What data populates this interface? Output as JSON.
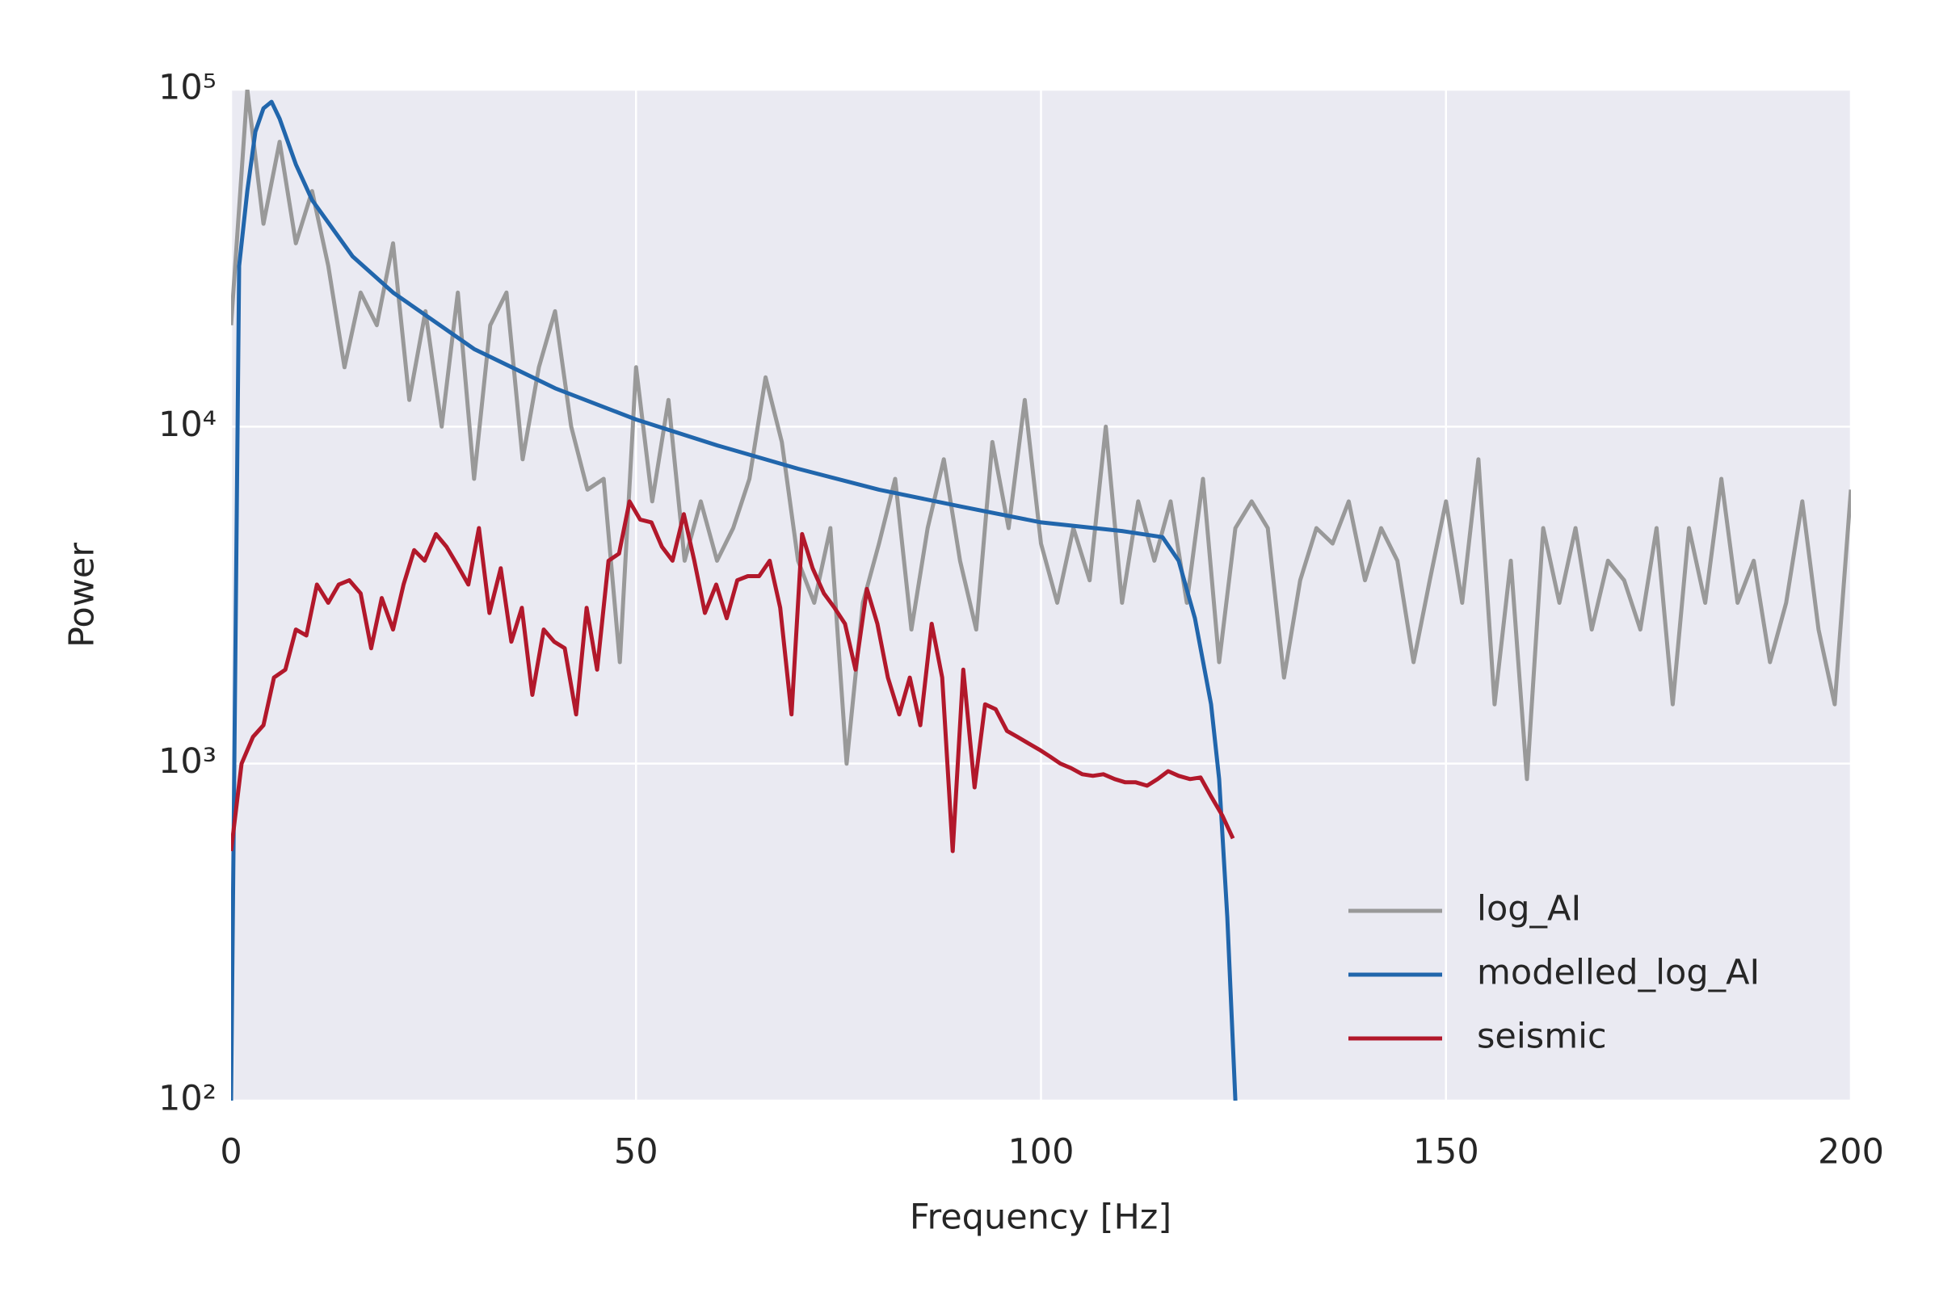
{
  "chart_data": {
    "type": "line",
    "xlabel": "Frequency [Hz]",
    "ylabel": "Power",
    "xlim": [
      0,
      200
    ],
    "xticks": [
      0,
      50,
      100,
      150,
      200
    ],
    "ylim": [
      100,
      100000
    ],
    "log_y": true,
    "grid": true,
    "legend": "lower right",
    "yticks": [
      {
        "value": 100,
        "label": "10²"
      },
      {
        "value": 1000,
        "label": "10³"
      },
      {
        "value": 10000,
        "label": "10⁴"
      },
      {
        "value": 100000,
        "label": "10⁵"
      }
    ],
    "series": [
      {
        "name": "log_AI",
        "color": "#999999",
        "x": [
          0,
          2,
          4,
          6,
          8,
          10,
          12,
          14,
          16,
          18,
          20,
          22,
          24,
          26,
          28,
          30,
          32,
          34,
          36,
          38,
          40,
          42,
          44,
          46,
          48,
          50,
          52,
          54,
          56,
          58,
          60,
          62,
          64,
          66,
          68,
          70,
          72,
          74,
          76,
          78,
          80,
          82,
          84,
          86,
          88,
          90,
          92,
          94,
          96,
          98,
          100,
          102,
          104,
          106,
          108,
          110,
          112,
          114,
          116,
          118,
          120,
          122,
          124,
          126,
          128,
          130,
          132,
          134,
          136,
          138,
          140,
          142,
          144,
          146,
          148,
          150,
          152,
          154,
          156,
          158,
          160,
          162,
          164,
          166,
          168,
          170,
          172,
          174,
          176,
          178,
          180,
          182,
          184,
          186,
          188,
          190,
          192,
          194,
          196,
          198,
          200
        ],
        "values": [
          20000,
          100000,
          40000,
          70000,
          35000,
          50000,
          30000,
          15000,
          25000,
          20000,
          35000,
          12000,
          22000,
          10000,
          25000,
          7000,
          20000,
          25000,
          8000,
          15000,
          22000,
          10000,
          6500,
          7000,
          2000,
          15000,
          6000,
          12000,
          4000,
          6000,
          4000,
          5000,
          7000,
          14000,
          9000,
          4000,
          3000,
          5000,
          1000,
          3000,
          4500,
          7000,
          2500,
          5000,
          8000,
          4000,
          2500,
          9000,
          5000,
          12000,
          4500,
          3000,
          5000,
          3500,
          10000,
          3000,
          6000,
          4000,
          6000,
          3000,
          7000,
          2000,
          5000,
          6000,
          5000,
          1800,
          3500,
          5000,
          4500,
          6000,
          3500,
          5000,
          4000,
          2000,
          3500,
          6000,
          3000,
          8000,
          1500,
          4000,
          900,
          5000,
          3000,
          5000,
          2500,
          4000,
          3500,
          2500,
          5000,
          1500,
          5000,
          3000,
          7000,
          3000,
          4000,
          2000,
          3000,
          6000,
          2500,
          1500,
          6500
        ]
      },
      {
        "name": "modelled_log_AI",
        "color": "#2166ac",
        "x": [
          0,
          1,
          2,
          3,
          4,
          5,
          6,
          8,
          10,
          15,
          20,
          30,
          40,
          50,
          60,
          70,
          80,
          90,
          100,
          110,
          115,
          117,
          119,
          121,
          122,
          123,
          124
        ],
        "values": [
          100,
          30000,
          50000,
          75000,
          88000,
          92000,
          82000,
          60000,
          47000,
          32000,
          25000,
          17000,
          13000,
          10500,
          8800,
          7500,
          6500,
          5800,
          5200,
          4900,
          4700,
          4000,
          2700,
          1500,
          900,
          350,
          100
        ]
      },
      {
        "name": "seismic",
        "color": "#b2182b",
        "x": [
          0,
          1.3,
          2.7,
          4,
          5.3,
          6.7,
          8,
          9.3,
          10.6,
          12,
          13.3,
          14.6,
          16,
          17.3,
          18.6,
          20,
          21.3,
          22.6,
          23.9,
          25.3,
          26.6,
          27.9,
          29.3,
          30.6,
          31.9,
          33.3,
          34.6,
          35.9,
          37.2,
          38.6,
          39.9,
          41.2,
          42.6,
          43.9,
          45.2,
          46.6,
          47.9,
          49.2,
          50.5,
          51.9,
          53.2,
          54.5,
          55.9,
          57.2,
          58.5,
          59.9,
          61.2,
          62.5,
          63.8,
          65.2,
          66.5,
          67.8,
          69.2,
          70.5,
          71.8,
          73.2,
          74.5,
          75.8,
          77.1,
          78.5,
          79.8,
          81.1,
          82.5,
          83.8,
          85.1,
          86.5,
          87.8,
          89.1,
          90.4,
          91.8,
          93.1,
          94.4,
          95.8,
          97.1,
          98.4,
          99.8,
          101.1,
          102.4,
          103.7,
          105.1,
          106.4,
          107.7,
          109.1,
          110.4,
          111.7,
          113.1,
          114.4,
          115.7,
          117,
          118.4,
          119.7,
          121,
          122.4,
          123.7
        ],
        "values": [
          550,
          1000,
          1200,
          1300,
          1800,
          1900,
          2500,
          2400,
          3400,
          3000,
          3400,
          3500,
          3200,
          2200,
          3100,
          2500,
          3400,
          4300,
          4000,
          4800,
          4400,
          3900,
          3400,
          5000,
          2800,
          3800,
          2300,
          2900,
          1600,
          2500,
          2300,
          2200,
          1400,
          2900,
          1900,
          4000,
          4200,
          6000,
          5300,
          5200,
          4400,
          4000,
          5500,
          4000,
          2800,
          3400,
          2700,
          3500,
          3600,
          3600,
          4000,
          2900,
          1400,
          4800,
          3800,
          3200,
          2900,
          2600,
          1900,
          3300,
          2600,
          1800,
          1400,
          1800,
          1300,
          2600,
          1800,
          550,
          1900,
          850,
          1500,
          1450,
          1250,
          1200,
          1150,
          1100,
          1050,
          1000,
          970,
          930,
          920,
          930,
          900,
          880,
          880,
          860,
          900,
          950,
          920,
          900,
          910,
          800,
          700,
          600
        ]
      }
    ]
  }
}
